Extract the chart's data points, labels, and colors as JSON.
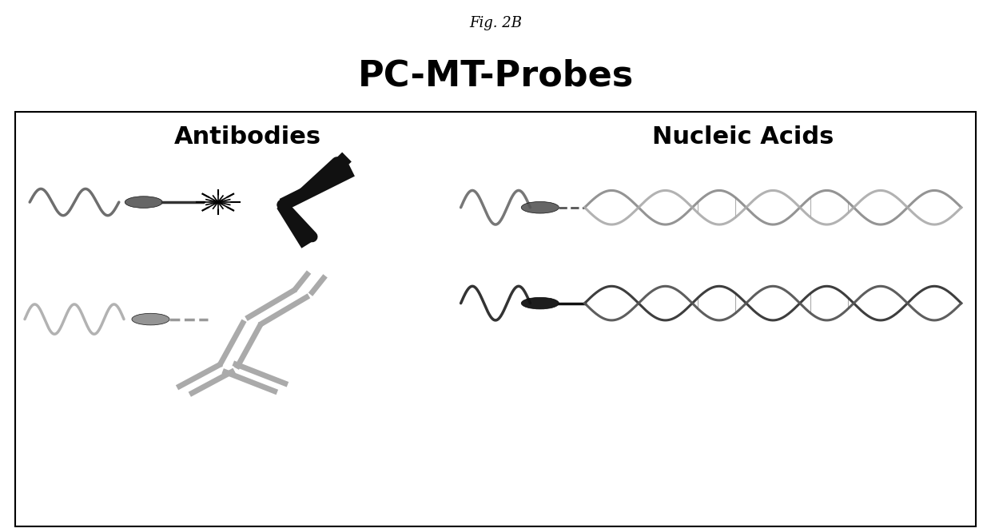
{
  "title": "PC-MT-Probes",
  "fig_label": "Fig. 2B",
  "section_left": "Antibodies",
  "section_right": "Nucleic Acids",
  "bg_color": "#ffffff",
  "box_color": "#000000",
  "title_fontsize": 32,
  "section_fontsize": 22,
  "fig_label_fontsize": 13
}
